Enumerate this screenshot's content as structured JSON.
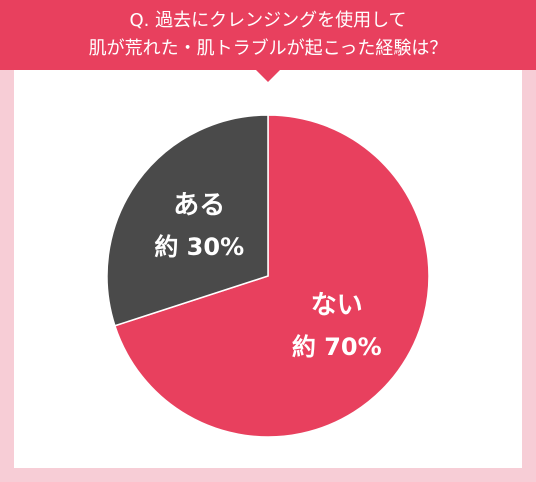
{
  "chart_data": {
    "type": "pie",
    "title": [
      "Q. 過去にクレンジングを使用して",
      "肌が荒れた・肌トラブルが起こった経験は？"
    ],
    "categories": [
      "ない",
      "ある"
    ],
    "values": [
      70,
      30
    ],
    "value_labels": [
      "約 70%",
      "約 30%"
    ],
    "colors": [
      "#e8405e",
      "#4a4a4a"
    ]
  }
}
